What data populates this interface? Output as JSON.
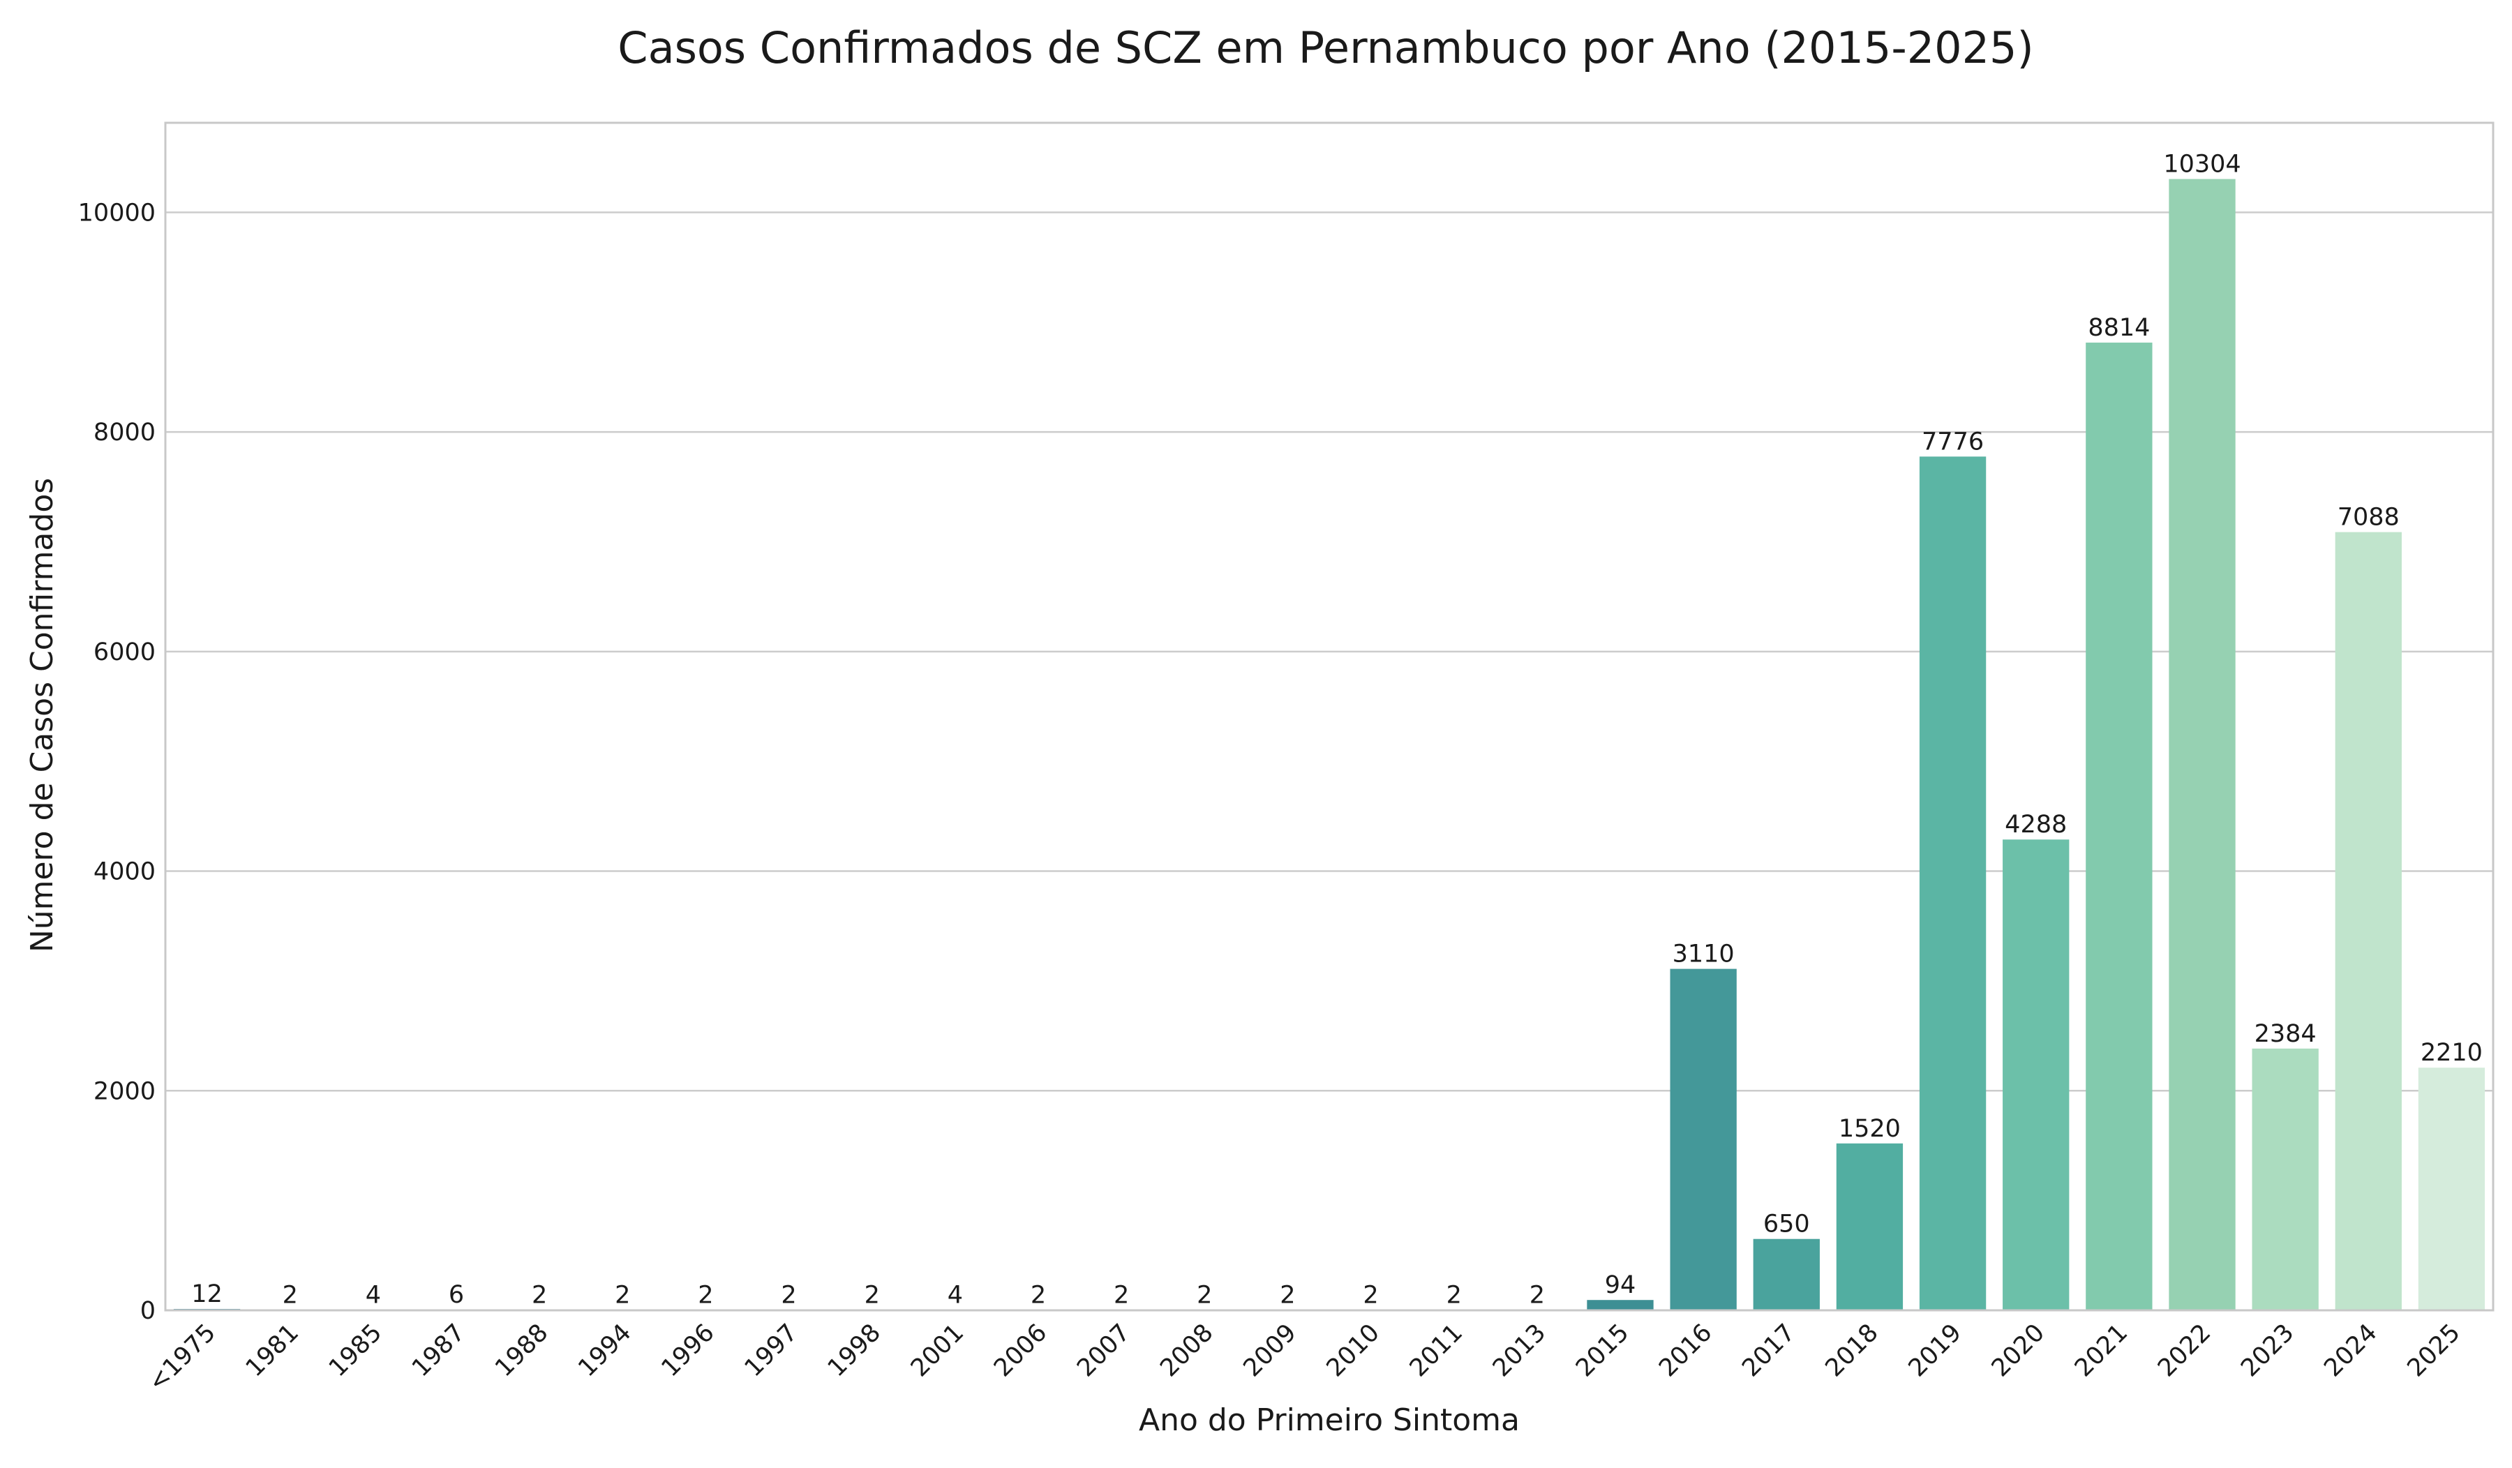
{
  "chart_data": {
    "type": "bar",
    "title": "Casos Confirmados de SCZ em Pernambuco por Ano (2015-2025)",
    "xlabel": "Ano do Primeiro Sintoma",
    "ylabel": "Número de Casos Confirmados",
    "categories": [
      "<1975",
      "1981",
      "1985",
      "1987",
      "1988",
      "1994",
      "1996",
      "1997",
      "1998",
      "2001",
      "2006",
      "2007",
      "2008",
      "2009",
      "2010",
      "2011",
      "2013",
      "2015",
      "2016",
      "2017",
      "2018",
      "2019",
      "2020",
      "2021",
      "2022",
      "2023",
      "2024",
      "2025"
    ],
    "values": [
      12,
      2,
      4,
      6,
      2,
      2,
      2,
      2,
      2,
      4,
      2,
      2,
      2,
      2,
      2,
      2,
      2,
      94,
      3110,
      650,
      1520,
      7776,
      4288,
      8814,
      10304,
      2384,
      7088,
      2210
    ],
    "ylim": [
      0,
      10816
    ],
    "yticks": [
      0,
      2000,
      4000,
      6000,
      8000,
      10000
    ],
    "grid": "horizontal",
    "data_labels": true,
    "colors": [
      "#2a788e",
      "#2b7f92",
      "#2c8696",
      "#2e8d99",
      "#30949c",
      "#339a9e",
      "#38a0a0",
      "#3ea5a1",
      "#46aaa2",
      "#4eaea3",
      "#57b2a5",
      "#61b6a7",
      "#6bbaa9",
      "#76beac",
      "#81c3af",
      "#8cc7b3",
      "#97cbb7",
      "#3d8f94",
      "#449899",
      "#4aa39d",
      "#52aea1",
      "#5bb5a4",
      "#6cc0a9",
      "#82caad",
      "#96d1b2",
      "#abdcbf",
      "#c0e4cc",
      "#d5ecdc"
    ]
  }
}
